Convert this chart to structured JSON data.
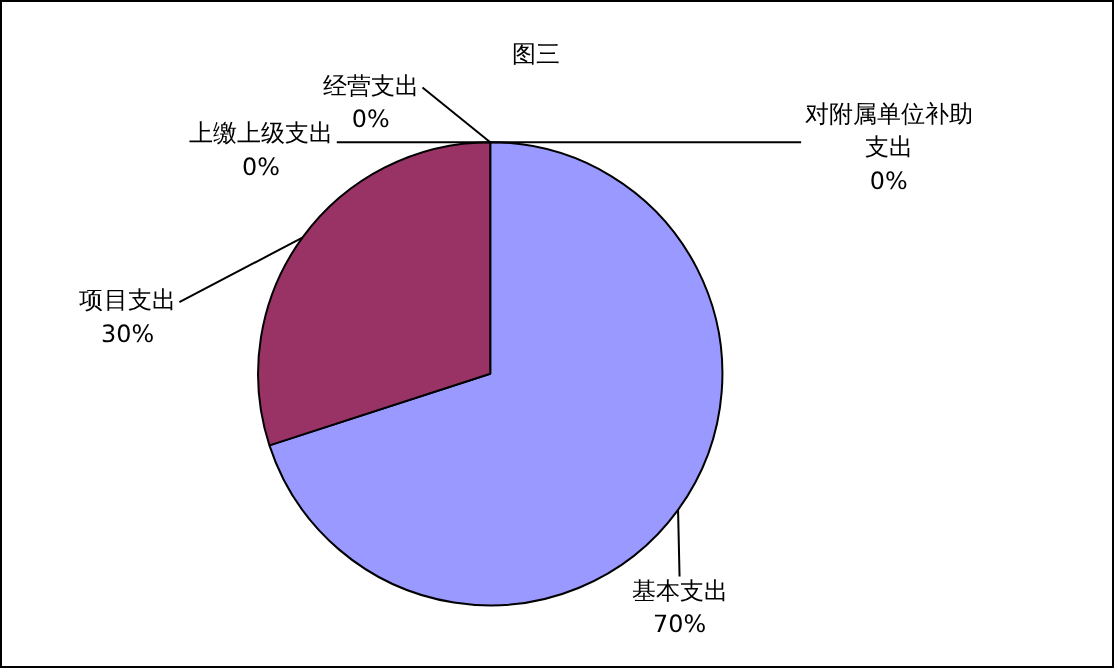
{
  "chart_data": {
    "type": "pie",
    "title": "图三",
    "categories": [
      "基本支出",
      "项目支出",
      "上缴上级支出",
      "经营支出",
      "对附属单位补助支出"
    ],
    "values": [
      70,
      30,
      0,
      0,
      0
    ],
    "colors": [
      "#9999ff",
      "#993366",
      "#ffffcc",
      "#ccffff",
      "#660066"
    ],
    "value_labels": [
      "70%",
      "30%",
      "0%",
      "0%",
      "0%"
    ],
    "legend": false
  }
}
